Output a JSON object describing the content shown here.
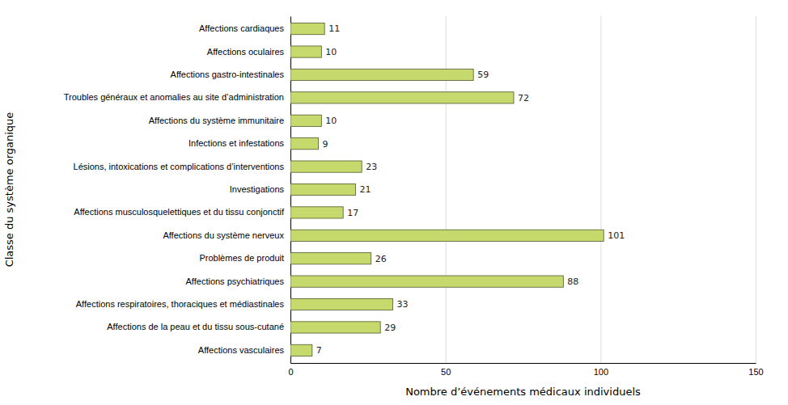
{
  "chart_data": {
    "type": "bar",
    "orientation": "horizontal",
    "categories": [
      "Affections vasculaires",
      "Affections de la peau et du tissu sous-cutané",
      "Affections respiratoires, thoraciques et médiastinales",
      "Affections psychiatriques",
      "Problèmes de produit",
      "Affections du système nerveux",
      "Affections musculosquelettiques et du tissu conjonctif",
      "Investigations",
      "Lésions, intoxications et complications d’interventions",
      "Infections et infestations",
      "Affections du système immunitaire",
      "Troubles généraux et anomalies au site d’administration",
      "Affections gastro-intestinales",
      "Affections oculaires",
      "Affections cardiaques"
    ],
    "values": [
      7,
      29,
      33,
      88,
      26,
      101,
      17,
      21,
      23,
      9,
      10,
      72,
      59,
      10,
      11
    ],
    "color": "#c5d96d",
    "xlabel": "Nombre d’événements médicaux individuels",
    "ylabel": "Classe du système organique",
    "xlim": [
      0,
      150
    ],
    "xticks": [
      0,
      50,
      100,
      150
    ],
    "grid": true,
    "data_labels": true
  }
}
